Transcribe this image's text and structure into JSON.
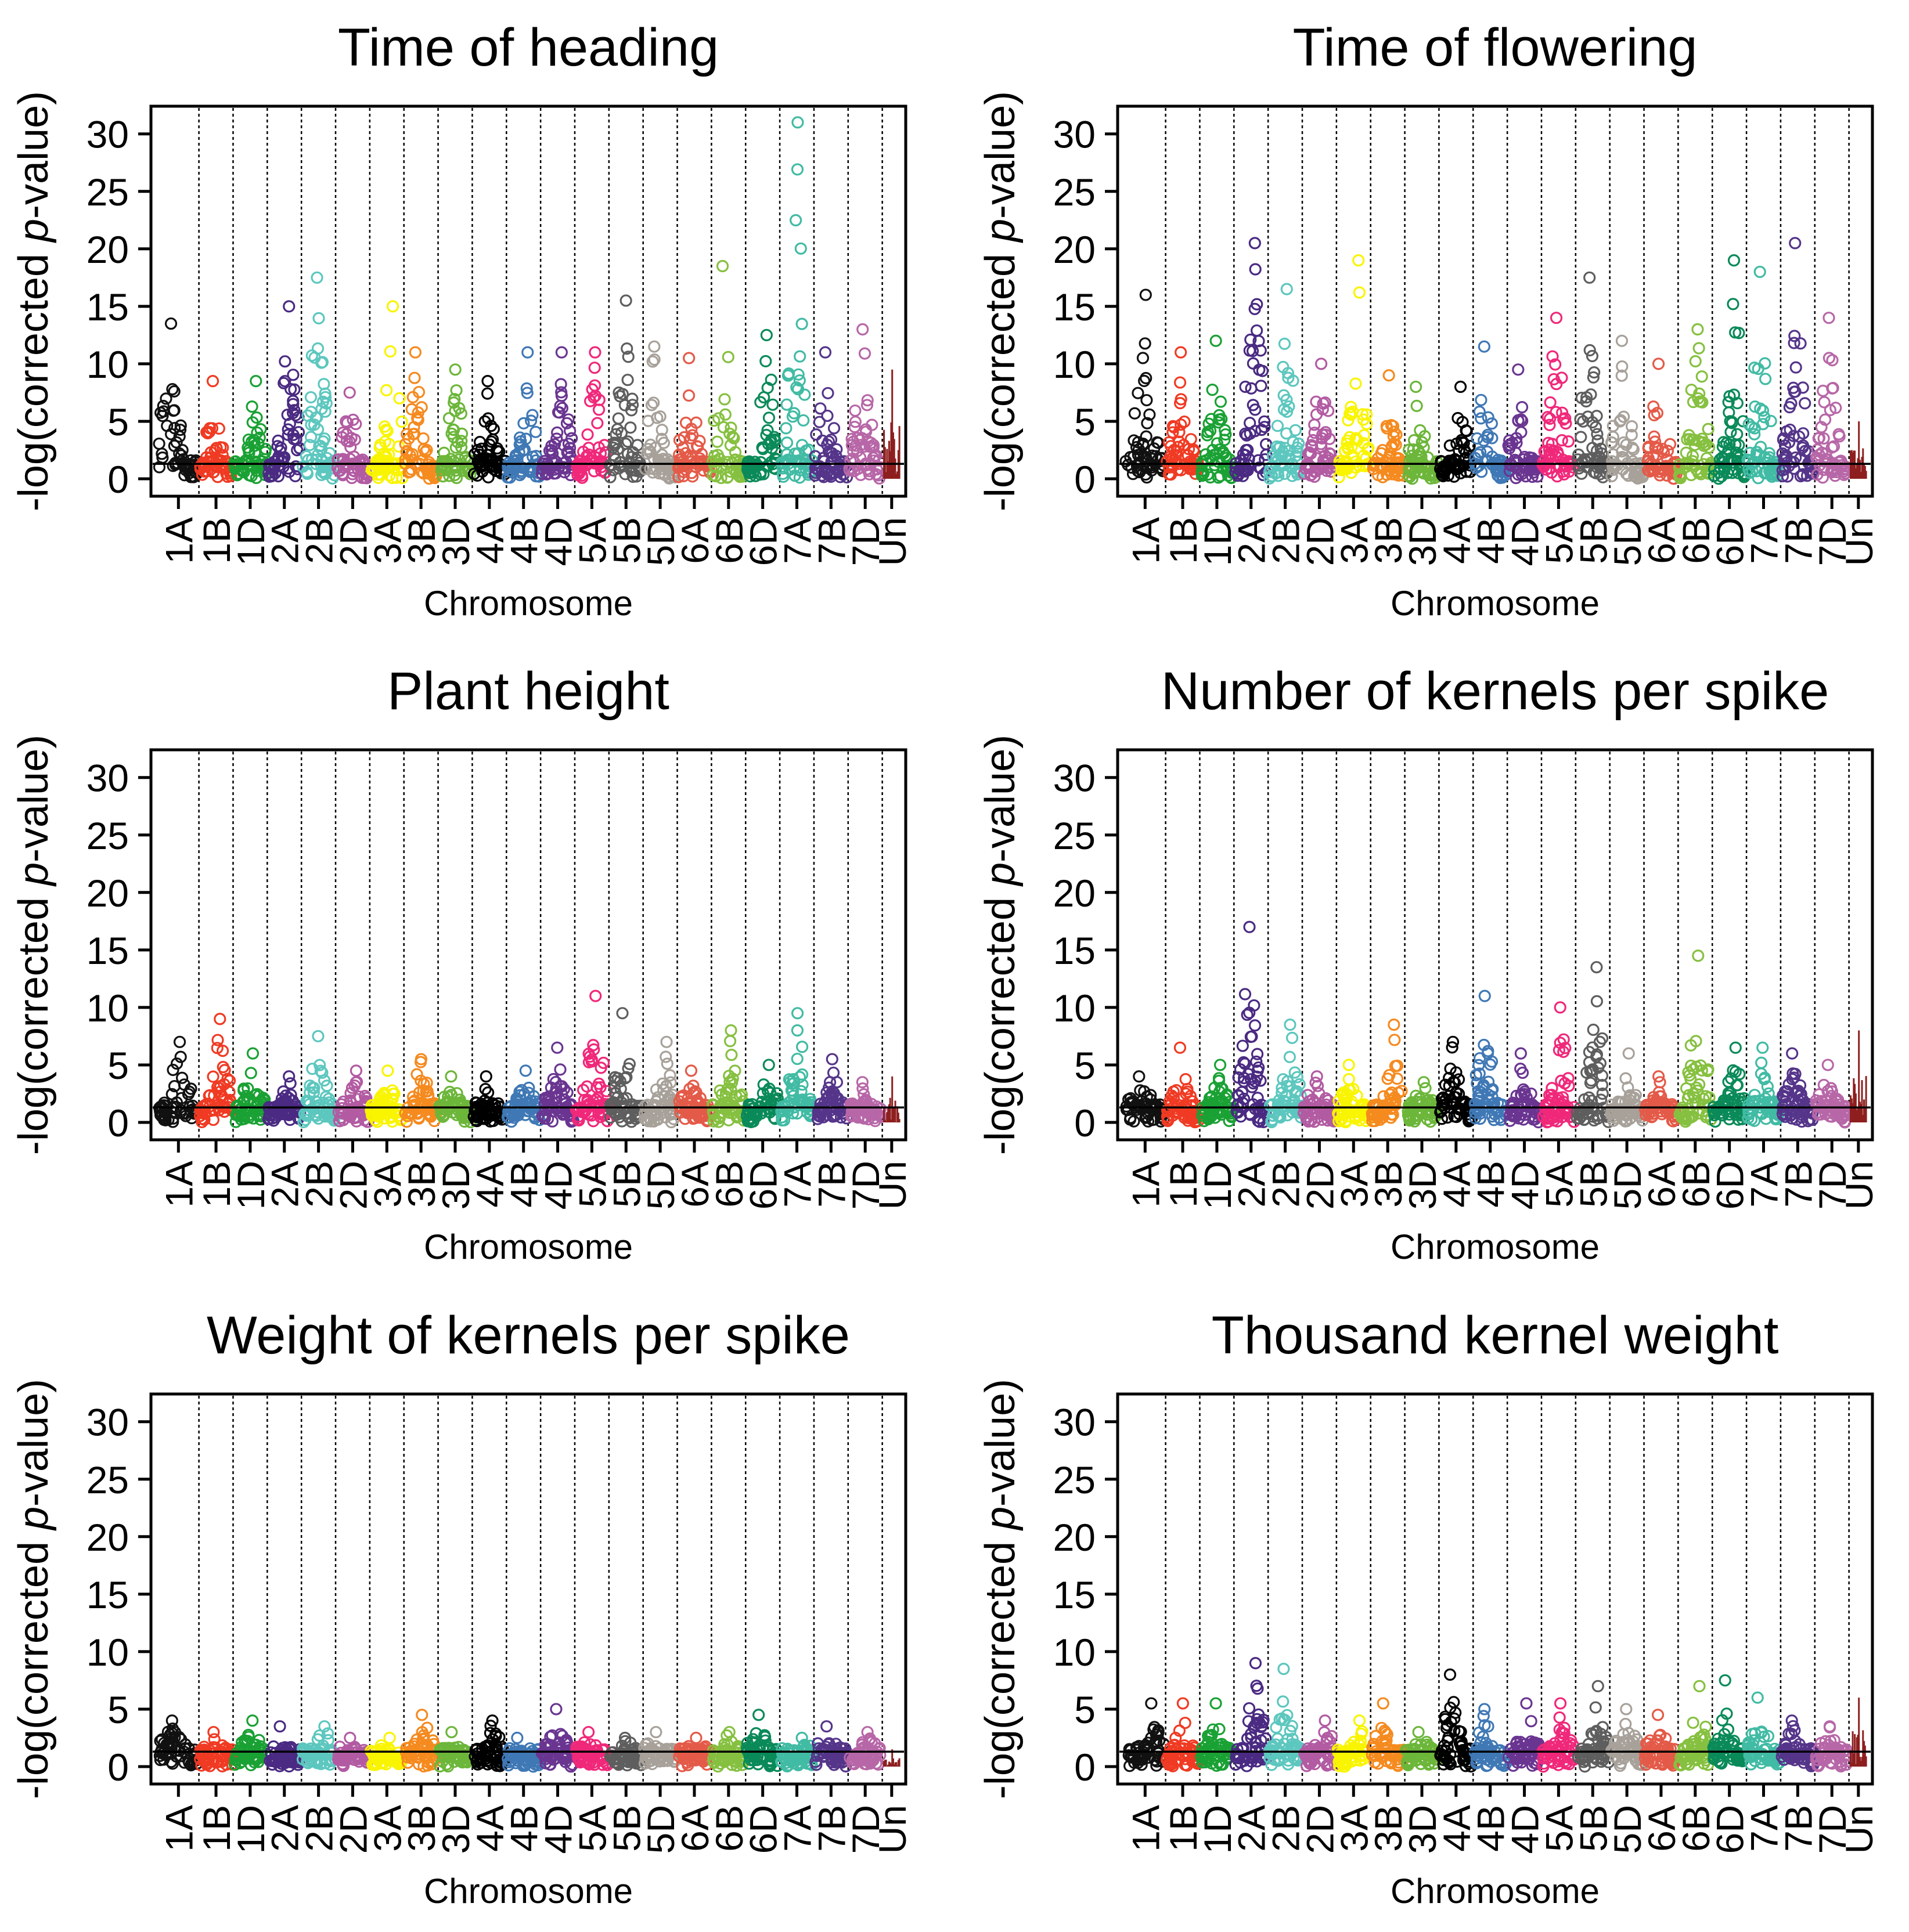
{
  "figure": {
    "x_axis_label": "Chromosome",
    "y_axis_label_prefix": "-log(corrected ",
    "y_axis_label_italic": "p",
    "y_axis_label_suffix": "-value)"
  },
  "chart_data": [
    {
      "type": "scatter",
      "title": "Time of heading",
      "xlabel": "Chromosome",
      "ylabel": "-log(corrected p-value)",
      "ylim": [
        0,
        31.5
      ],
      "yticks": [
        0,
        5,
        10,
        15,
        20,
        25,
        30
      ],
      "threshold": 1.3,
      "categories": [
        "1A",
        "1B",
        "1D",
        "2A",
        "2B",
        "2D",
        "3A",
        "3B",
        "3D",
        "4A",
        "4B",
        "4D",
        "5A",
        "5B",
        "5D",
        "6A",
        "6B",
        "6D",
        "7A",
        "7B",
        "7D",
        "Un"
      ],
      "peaks": [
        13.5,
        8.5,
        8.5,
        15,
        17.5,
        7.5,
        15,
        11,
        9.5,
        8.5,
        11,
        11,
        11,
        15.5,
        11.5,
        10.5,
        18.5,
        12.5,
        31,
        11,
        13,
        9.5
      ]
    },
    {
      "type": "scatter",
      "title": "Time of flowering",
      "xlabel": "Chromosome",
      "ylabel": "-log(corrected p-value)",
      "ylim": [
        0,
        31.5
      ],
      "yticks": [
        0,
        5,
        10,
        15,
        20,
        25,
        30
      ],
      "threshold": 1.3,
      "categories": [
        "1A",
        "1B",
        "1D",
        "2A",
        "2B",
        "2D",
        "3A",
        "3B",
        "3D",
        "4A",
        "4B",
        "4D",
        "5A",
        "5B",
        "5D",
        "6A",
        "6B",
        "6D",
        "7A",
        "7B",
        "7D",
        "Un"
      ],
      "peaks": [
        16,
        11,
        12,
        20.5,
        16.5,
        10,
        19,
        9,
        8,
        8,
        11.5,
        9.5,
        14,
        17.5,
        12,
        10,
        13,
        19,
        18,
        20.5,
        14,
        5
      ]
    },
    {
      "type": "scatter",
      "title": "Plant height",
      "xlabel": "Chromosome",
      "ylabel": "-log(corrected p-value)",
      "ylim": [
        0,
        31.5
      ],
      "yticks": [
        0,
        5,
        10,
        15,
        20,
        25,
        30
      ],
      "threshold": 1.3,
      "categories": [
        "1A",
        "1B",
        "1D",
        "2A",
        "2B",
        "2D",
        "3A",
        "3B",
        "3D",
        "4A",
        "4B",
        "4D",
        "5A",
        "5B",
        "5D",
        "6A",
        "6B",
        "6D",
        "7A",
        "7B",
        "7D",
        "Un"
      ],
      "peaks": [
        7,
        9,
        6,
        4,
        7.5,
        4.5,
        4.5,
        5.5,
        4,
        4,
        4.5,
        6.5,
        11,
        9.5,
        7,
        4.5,
        8,
        5,
        9.5,
        5.5,
        3.5,
        4
      ]
    },
    {
      "type": "scatter",
      "title": "Number of kernels per spike",
      "xlabel": "Chromosome",
      "ylabel": "-log(corrected p-value)",
      "ylim": [
        0,
        31.5
      ],
      "yticks": [
        0,
        5,
        10,
        15,
        20,
        25,
        30
      ],
      "threshold": 1.3,
      "categories": [
        "1A",
        "1B",
        "1D",
        "2A",
        "2B",
        "2D",
        "3A",
        "3B",
        "3D",
        "4A",
        "4B",
        "4D",
        "5A",
        "5B",
        "5D",
        "6A",
        "6B",
        "6D",
        "7A",
        "7B",
        "7D",
        "Un"
      ],
      "peaks": [
        4,
        6.5,
        5,
        17,
        8.5,
        4,
        5,
        8.5,
        3.5,
        7,
        11,
        6,
        10,
        13.5,
        6,
        4,
        14.5,
        6.5,
        6.5,
        6,
        5,
        8
      ]
    },
    {
      "type": "scatter",
      "title": "Weight of kernels per spike",
      "xlabel": "Chromosome",
      "ylabel": "-log(corrected p-value)",
      "ylim": [
        0,
        31.5
      ],
      "yticks": [
        0,
        5,
        10,
        15,
        20,
        25,
        30
      ],
      "threshold": 1.3,
      "categories": [
        "1A",
        "1B",
        "1D",
        "2A",
        "2B",
        "2D",
        "3A",
        "3B",
        "3D",
        "4A",
        "4B",
        "4D",
        "5A",
        "5B",
        "5D",
        "6A",
        "6B",
        "6D",
        "7A",
        "7B",
        "7D",
        "Un"
      ],
      "peaks": [
        4,
        3,
        4,
        3.5,
        3.5,
        2.5,
        2.5,
        4.5,
        3,
        4,
        2.5,
        5,
        3,
        2.5,
        3,
        2.5,
        3,
        4.5,
        2.5,
        3.5,
        3,
        1.5
      ]
    },
    {
      "type": "scatter",
      "title": "Thousand kernel weight",
      "xlabel": "Chromosome",
      "ylabel": "-log(corrected p-value)",
      "ylim": [
        0,
        31.5
      ],
      "yticks": [
        0,
        5,
        10,
        15,
        20,
        25,
        30
      ],
      "threshold": 1.3,
      "categories": [
        "1A",
        "1B",
        "1D",
        "2A",
        "2B",
        "2D",
        "3A",
        "3B",
        "3D",
        "4A",
        "4B",
        "4D",
        "5A",
        "5B",
        "5D",
        "6A",
        "6B",
        "6D",
        "7A",
        "7B",
        "7D",
        "Un"
      ],
      "peaks": [
        5.5,
        5.5,
        5.5,
        9,
        8.5,
        4,
        4,
        5.5,
        3,
        8,
        5,
        5.5,
        5.5,
        7,
        5,
        4.5,
        7,
        7.5,
        6,
        4,
        3.5,
        6
      ]
    }
  ],
  "chromosome_colors": {
    "1A": "#111111",
    "1B": "#f03a23",
    "1D": "#1aa134",
    "2A": "#4a2a82",
    "2B": "#5cc7be",
    "2D": "#b25ba2",
    "3A": "#f9f400",
    "3B": "#f58a1f",
    "3D": "#6cb63a",
    "4A": "#000000",
    "4B": "#3f78b5",
    "4D": "#6a3591",
    "5A": "#f0287a",
    "5B": "#5e5e5e",
    "5D": "#a7a19a",
    "6A": "#e45a48",
    "6B": "#86c040",
    "6D": "#0a8a59",
    "7A": "#41bba4",
    "7B": "#55358a",
    "7D": "#b767a7",
    "Un": "#8e1f1f"
  }
}
